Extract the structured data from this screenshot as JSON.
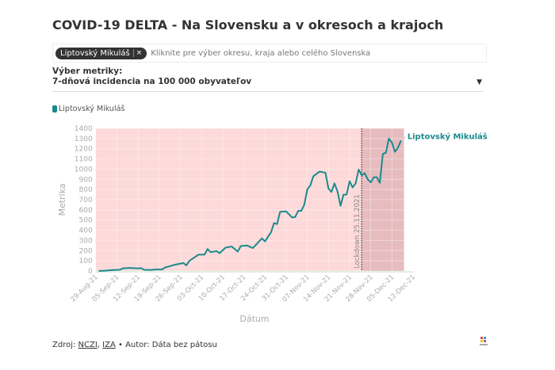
{
  "title": "COVID-19 DELTA - Na Slovensku a v okresoch a krajoch",
  "selector": {
    "chip": "Liptovský Mikuláš",
    "chip_remove": "×",
    "placeholder": "Kliknite pre výber okresu, kraja alebo celého Slovenska"
  },
  "metric": {
    "label": "Výber metriky:",
    "value": "7-dňová incidencia na 100 000 obyvateľov",
    "caret": "▼"
  },
  "footer": {
    "prefix": "Zdroj: ",
    "src1": "NCZI",
    "sep": ", ",
    "src2": "IZA",
    "suffix": " • Autor: Dáta bez pátosu"
  },
  "chart_data": {
    "type": "line",
    "xlabel": "Dátum",
    "ylabel": "Metrika",
    "xlim": [
      "2021-08-29",
      "2021-12-12"
    ],
    "ylim": [
      0,
      1400
    ],
    "yticks": [
      0,
      100,
      200,
      300,
      400,
      500,
      600,
      700,
      800,
      900,
      1000,
      1100,
      1200,
      1300,
      1400
    ],
    "xticks": [
      "29-Aug-21",
      "05-Sep-21",
      "12-Sep-21",
      "19-Sep-21",
      "26-Sep-21",
      "03-Oct-21",
      "10-Oct-21",
      "17-Oct-21",
      "24-Oct-21",
      "31-Oct-21",
      "07-Nov-21",
      "14-Nov-21",
      "21-Nov-21",
      "28-Nov-21",
      "05-Dec-21",
      "12-Dec-21"
    ],
    "grid": true,
    "legend": "top-left",
    "line_color": "#1a8a8c",
    "shade_color": "#fdd9d9",
    "shade_range": [
      "2021-08-29",
      "2021-12-09"
    ],
    "dark_shade_range": [
      "2021-11-25",
      "2021-12-09"
    ],
    "annotation": {
      "date": "2021-11-25",
      "text": "Lockdown 25.11.2021"
    },
    "series": [
      {
        "name": "Liptovský Mikuláš",
        "points": [
          [
            "2021-08-30",
            0
          ],
          [
            "2021-09-01",
            3
          ],
          [
            "2021-09-04",
            10
          ],
          [
            "2021-09-06",
            12
          ],
          [
            "2021-09-07",
            25
          ],
          [
            "2021-09-09",
            30
          ],
          [
            "2021-09-12",
            25
          ],
          [
            "2021-09-13",
            28
          ],
          [
            "2021-09-14",
            12
          ],
          [
            "2021-09-16",
            10
          ],
          [
            "2021-09-18",
            15
          ],
          [
            "2021-09-20",
            15
          ],
          [
            "2021-09-21",
            35
          ],
          [
            "2021-09-22",
            42
          ],
          [
            "2021-09-24",
            60
          ],
          [
            "2021-09-27",
            78
          ],
          [
            "2021-09-28",
            55
          ],
          [
            "2021-09-29",
            100
          ],
          [
            "2021-10-02",
            160
          ],
          [
            "2021-10-04",
            160
          ],
          [
            "2021-10-05",
            215
          ],
          [
            "2021-10-06",
            185
          ],
          [
            "2021-10-08",
            195
          ],
          [
            "2021-10-09",
            175
          ],
          [
            "2021-10-11",
            230
          ],
          [
            "2021-10-13",
            240
          ],
          [
            "2021-10-15",
            190
          ],
          [
            "2021-10-16",
            245
          ],
          [
            "2021-10-18",
            250
          ],
          [
            "2021-10-20",
            225
          ],
          [
            "2021-10-23",
            320
          ],
          [
            "2021-10-24",
            290
          ],
          [
            "2021-10-25",
            335
          ],
          [
            "2021-10-26",
            380
          ],
          [
            "2021-10-27",
            470
          ],
          [
            "2021-10-28",
            460
          ],
          [
            "2021-10-29",
            580
          ],
          [
            "2021-10-31",
            585
          ],
          [
            "2021-11-02",
            525
          ],
          [
            "2021-11-03",
            530
          ],
          [
            "2021-11-04",
            590
          ],
          [
            "2021-11-05",
            590
          ],
          [
            "2021-11-06",
            650
          ],
          [
            "2021-11-07",
            800
          ],
          [
            "2021-11-08",
            840
          ],
          [
            "2021-11-09",
            930
          ],
          [
            "2021-11-11",
            975
          ],
          [
            "2021-11-13",
            965
          ],
          [
            "2021-11-14",
            810
          ],
          [
            "2021-11-15",
            775
          ],
          [
            "2021-11-16",
            860
          ],
          [
            "2021-11-17",
            780
          ],
          [
            "2021-11-18",
            640
          ],
          [
            "2021-11-19",
            750
          ],
          [
            "2021-11-20",
            750
          ],
          [
            "2021-11-21",
            880
          ],
          [
            "2021-11-22",
            820
          ],
          [
            "2021-11-23",
            860
          ],
          [
            "2021-11-24",
            995
          ],
          [
            "2021-11-25",
            940
          ],
          [
            "2021-11-26",
            960
          ],
          [
            "2021-11-27",
            900
          ],
          [
            "2021-11-28",
            870
          ],
          [
            "2021-11-29",
            920
          ],
          [
            "2021-11-30",
            920
          ],
          [
            "2021-12-01",
            865
          ],
          [
            "2021-12-02",
            1150
          ],
          [
            "2021-12-03",
            1160
          ],
          [
            "2021-12-04",
            1300
          ],
          [
            "2021-12-05",
            1260
          ],
          [
            "2021-12-06",
            1170
          ],
          [
            "2021-12-07",
            1210
          ],
          [
            "2021-12-08",
            1280
          ]
        ]
      }
    ]
  }
}
